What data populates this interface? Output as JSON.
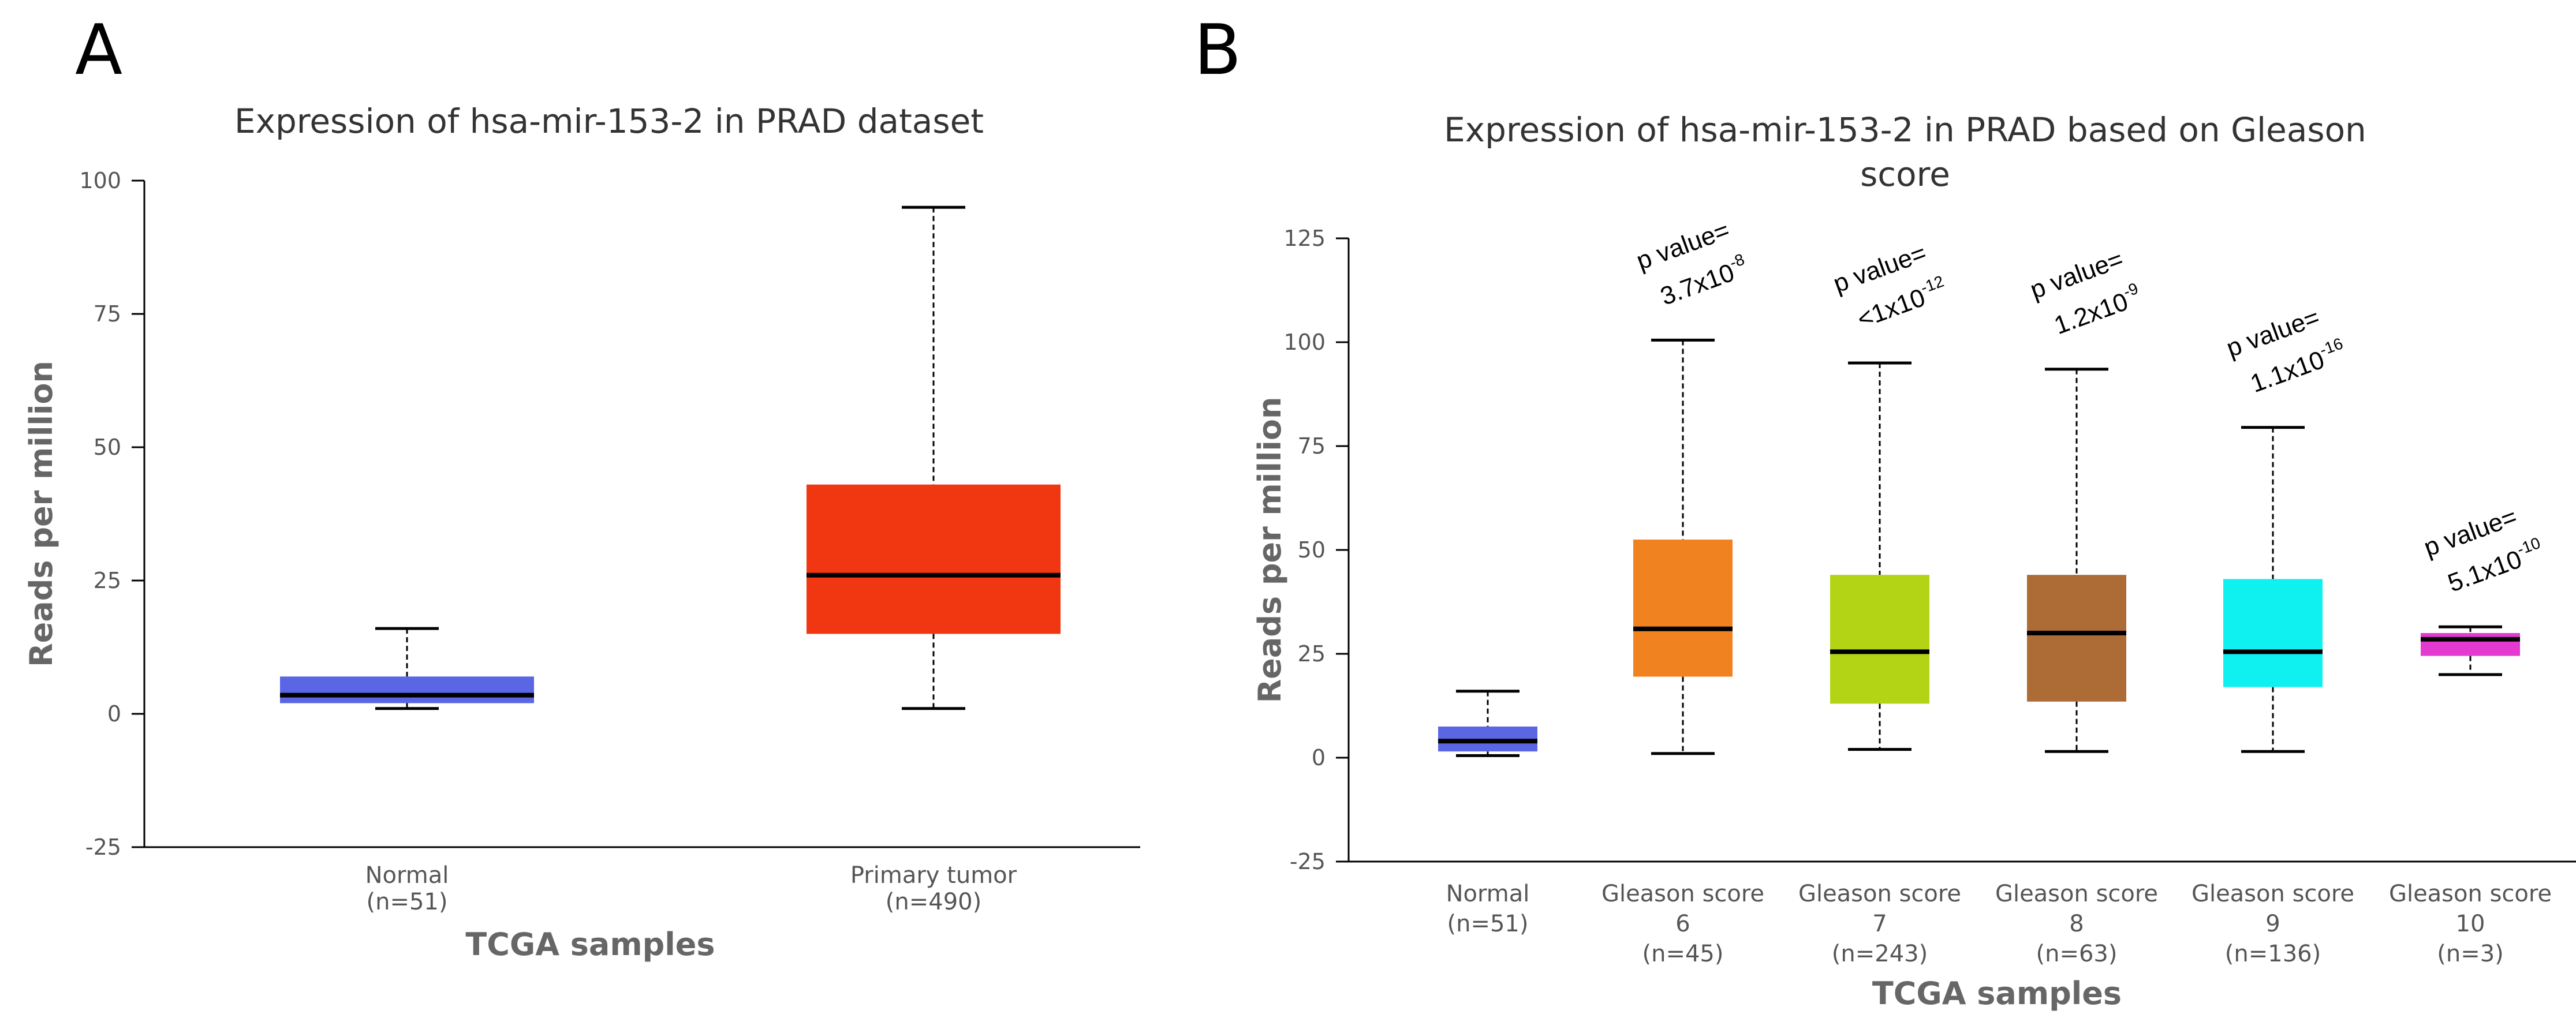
{
  "panels": {
    "A": {
      "letter": "A"
    },
    "B": {
      "letter": "B"
    }
  },
  "chart_data": [
    {
      "type": "box",
      "panel": "A",
      "title": [
        "Expression of hsa-mir-153-2 in PRAD dataset"
      ],
      "xlabel": "TCGA samples",
      "ylabel": "Reads per million",
      "ylim": [
        -25,
        100
      ],
      "yticks": [
        -25,
        0,
        25,
        50,
        75,
        100
      ],
      "categories": [
        {
          "label_lines": [
            "Normal",
            "(n=51)"
          ],
          "min": 1,
          "q1": 2,
          "median": 3.5,
          "q3": 7,
          "max": 16,
          "color": "#5a66e3"
        },
        {
          "label_lines": [
            "Primary tumor",
            "(n=490)"
          ],
          "min": 1,
          "q1": 15,
          "median": 26,
          "q3": 43,
          "max": 95,
          "color": "#f03712"
        }
      ]
    },
    {
      "type": "box",
      "panel": "B",
      "title": [
        "Expression of hsa-mir-153-2 in PRAD based on Gleason",
        "score"
      ],
      "xlabel": "TCGA samples",
      "ylabel": "Reads per million",
      "ylim": [
        -25,
        125
      ],
      "yticks": [
        -25,
        0,
        25,
        50,
        75,
        100,
        125
      ],
      "categories": [
        {
          "label_lines": [
            "Normal",
            "(n=51)"
          ],
          "min": 0.5,
          "q1": 1.5,
          "median": 4,
          "q3": 7.5,
          "max": 16,
          "color": "#5a66e3"
        },
        {
          "label_lines": [
            "Gleason score",
            "6",
            "(n=45)"
          ],
          "min": 1,
          "q1": 19.5,
          "median": 31,
          "q3": 52.5,
          "max": 100.5,
          "color": "#f08320",
          "pvalue": {
            "label": "p value=",
            "base": "3.7x10",
            "exp": "-8"
          }
        },
        {
          "label_lines": [
            "Gleason score",
            "7",
            "(n=243)"
          ],
          "min": 2,
          "q1": 13,
          "median": 25.5,
          "q3": 44,
          "max": 95,
          "color": "#b3d414",
          "pvalue": {
            "label": "p value=",
            "base": "<1x10",
            "exp": "-12"
          }
        },
        {
          "label_lines": [
            "Gleason score",
            "8",
            "(n=63)"
          ],
          "min": 1.5,
          "q1": 13.5,
          "median": 30,
          "q3": 44,
          "max": 93.5,
          "color": "#ad6c36",
          "pvalue": {
            "label": "p value=",
            "base": "1.2x10",
            "exp": "-9"
          }
        },
        {
          "label_lines": [
            "Gleason score",
            "9",
            "(n=136)"
          ],
          "min": 1.5,
          "q1": 17,
          "median": 25.5,
          "q3": 43,
          "max": 79.5,
          "color": "#0ff0f0",
          "pvalue": {
            "label": "p value=",
            "base": "1.1x10",
            "exp": "-16"
          }
        },
        {
          "label_lines": [
            "Gleason score",
            "10",
            "(n=3)"
          ],
          "min": 20,
          "q1": 24.5,
          "median": 28.5,
          "q3": 30,
          "max": 31.5,
          "color": "#e43ad2",
          "pvalue": {
            "label": "p value=",
            "base": "5.1x10",
            "exp": "-10"
          }
        }
      ]
    }
  ]
}
